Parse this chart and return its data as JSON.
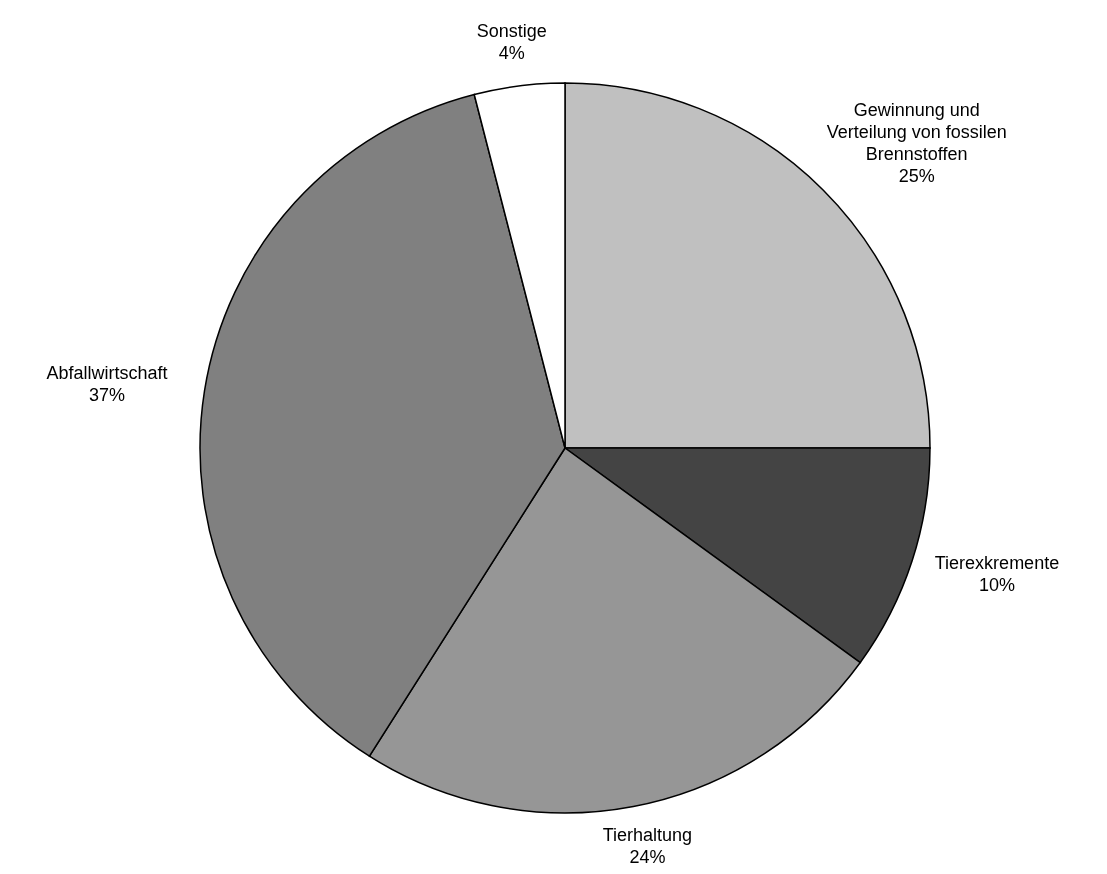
{
  "chart_data": {
    "type": "pie",
    "categories": [
      "Gewinnung und Verteilung von fossilen Brennstoffen",
      "Tierexkremente",
      "Tierhaltung",
      "Abfallwirtschaft",
      "Sonstige"
    ],
    "values": [
      25,
      10,
      24,
      37,
      4
    ],
    "value_labels": [
      "25%",
      "10%",
      "24%",
      "37%",
      "4%"
    ],
    "colors": [
      "#c0c0c0",
      "#444444",
      "#969696",
      "#808080",
      "#ffffff"
    ]
  }
}
